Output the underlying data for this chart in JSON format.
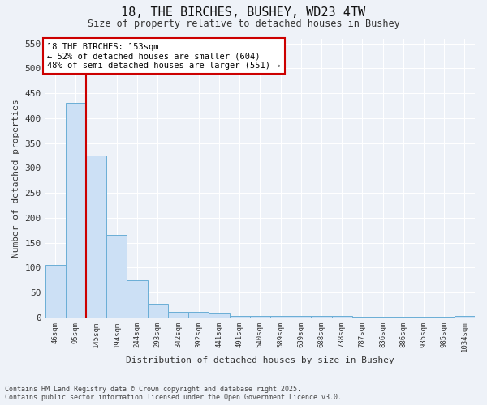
{
  "title1": "18, THE BIRCHES, BUSHEY, WD23 4TW",
  "title2": "Size of property relative to detached houses in Bushey",
  "xlabel": "Distribution of detached houses by size in Bushey",
  "ylabel": "Number of detached properties",
  "categories": [
    "46sqm",
    "95sqm",
    "145sqm",
    "194sqm",
    "244sqm",
    "293sqm",
    "342sqm",
    "392sqm",
    "441sqm",
    "491sqm",
    "540sqm",
    "589sqm",
    "639sqm",
    "688sqm",
    "738sqm",
    "787sqm",
    "836sqm",
    "886sqm",
    "935sqm",
    "985sqm",
    "1034sqm"
  ],
  "values": [
    105,
    430,
    325,
    165,
    75,
    27,
    12,
    12,
    8,
    3,
    3,
    3,
    3,
    3,
    3,
    2,
    2,
    1,
    1,
    1,
    3
  ],
  "bar_color": "#cce0f5",
  "bar_edge_color": "#6aaed6",
  "vline_x_index": 1.5,
  "vline_color": "#cc0000",
  "annotation_text": "18 THE BIRCHES: 153sqm\n← 52% of detached houses are smaller (604)\n48% of semi-detached houses are larger (551) →",
  "annotation_box_color": "white",
  "annotation_box_edge": "#cc0000",
  "ylim": [
    0,
    560
  ],
  "yticks": [
    0,
    50,
    100,
    150,
    200,
    250,
    300,
    350,
    400,
    450,
    500,
    550
  ],
  "footer": "Contains HM Land Registry data © Crown copyright and database right 2025.\nContains public sector information licensed under the Open Government Licence v3.0.",
  "background_color": "#eef2f8",
  "plot_bg_color": "#eef2f8",
  "grid_color": "#ffffff"
}
